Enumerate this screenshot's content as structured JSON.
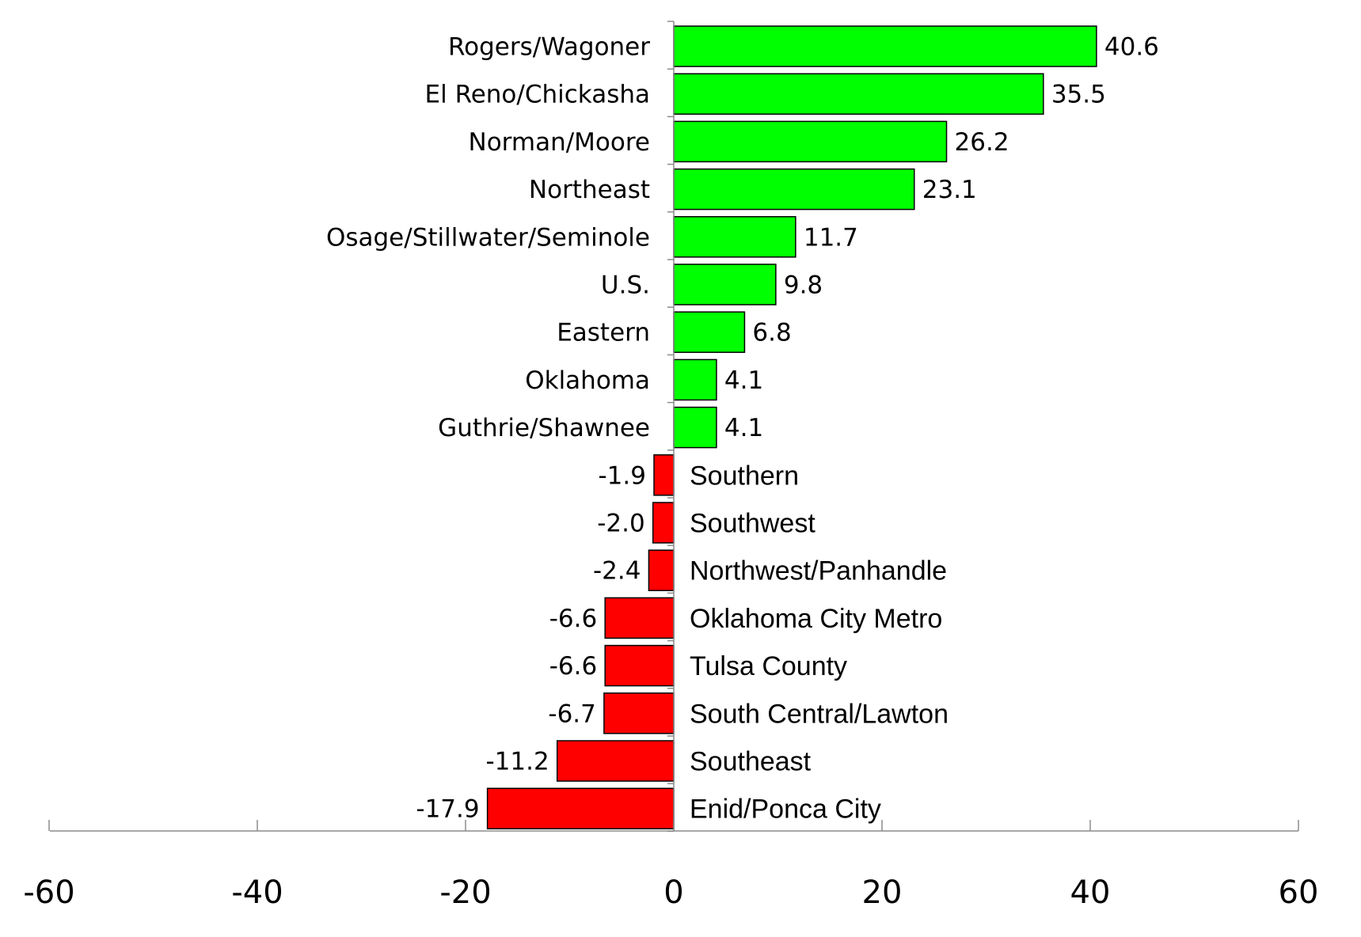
{
  "chart_data": {
    "type": "bar",
    "orientation": "horizontal",
    "title": "",
    "xlabel": "",
    "ylabel": "",
    "xlim": [
      -60,
      60
    ],
    "x_ticks": [
      -60,
      -40,
      -20,
      0,
      20,
      40,
      60
    ],
    "grid": false,
    "legend": "none",
    "colors": {
      "positive": "#00ff00",
      "negative": "#ff0000"
    },
    "categories": [
      "Rogers/Wagoner",
      "El Reno/Chickasha",
      "Norman/Moore",
      "Northeast",
      "Osage/Stillwater/Seminole",
      "U.S.",
      "Eastern",
      "Oklahoma",
      "Guthrie/Shawnee",
      "Southern",
      "Southwest",
      "Northwest/Panhandle",
      "Oklahoma City Metro",
      "Tulsa County",
      "South Central/Lawton",
      "Southeast",
      "Enid/Ponca City"
    ],
    "values": [
      40.6,
      35.5,
      26.2,
      23.1,
      11.7,
      9.8,
      6.8,
      4.1,
      4.1,
      -1.9,
      -2.0,
      -2.4,
      -6.6,
      -6.6,
      -6.7,
      -11.2,
      -17.9
    ],
    "value_labels": [
      "40.6",
      "35.5",
      "26.2",
      "23.1",
      "11.7",
      "9.8",
      "6.8",
      "4.1",
      "4.1",
      "-1.9",
      "-2.0",
      "-2.4",
      "-6.6",
      "-6.6",
      "-6.7",
      "-11.2",
      "-17.9"
    ]
  }
}
